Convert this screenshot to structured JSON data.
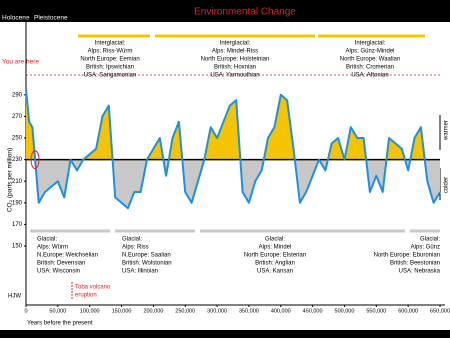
{
  "chart_data": {
    "type": "line",
    "title": "Environmental Change",
    "era_labels": [
      "Holocene",
      "Pleistocene"
    ],
    "you_are_here": "You are here",
    "y_label": "CO₂ (parts per million)",
    "x_label": "Years before the present",
    "warmer": "warmer",
    "colder": "colder",
    "toba": [
      "Toba volcano",
      "eruption"
    ],
    "credit": "HJW",
    "x": [
      0,
      5000,
      10000,
      20000,
      30000,
      40000,
      50000,
      60000,
      70000,
      80000,
      90000,
      100000,
      110000,
      120000,
      130000,
      140000,
      150000,
      160000,
      170000,
      180000,
      190000,
      200000,
      210000,
      220000,
      230000,
      240000,
      250000,
      260000,
      270000,
      280000,
      290000,
      300000,
      310000,
      320000,
      330000,
      340000,
      350000,
      360000,
      370000,
      380000,
      390000,
      400000,
      410000,
      420000,
      430000,
      440000,
      450000,
      460000,
      470000,
      480000,
      490000,
      500000,
      510000,
      520000,
      530000,
      540000,
      550000,
      560000,
      570000,
      580000,
      590000,
      600000,
      610000,
      620000,
      630000,
      640000,
      650000
    ],
    "series": [
      {
        "name": "CO₂",
        "color": "#1e90e0",
        "values": [
          295,
          265,
          260,
          190,
          200,
          205,
          210,
          195,
          230,
          220,
          230,
          235,
          240,
          270,
          280,
          195,
          190,
          185,
          200,
          200,
          230,
          240,
          250,
          215,
          250,
          265,
          200,
          190,
          210,
          230,
          260,
          250,
          265,
          280,
          285,
          200,
          190,
          210,
          220,
          250,
          260,
          290,
          285,
          240,
          190,
          200,
          215,
          230,
          220,
          245,
          250,
          230,
          260,
          250,
          250,
          200,
          215,
          200,
          250,
          245,
          240,
          220,
          250,
          260,
          210,
          190,
          200
        ]
      }
    ],
    "baseline": 230,
    "above_color": "#f5c400",
    "below_color": "#c8c8c8",
    "xlim": [
      0,
      650000
    ],
    "ylim": [
      100,
      350
    ],
    "yticks": [
      150,
      170,
      190,
      210,
      230,
      250,
      270,
      290
    ],
    "xticks": [
      0,
      {
        "value": 50000,
        "label": "50,000"
      },
      {
        "value": 100000,
        "label": "100,000"
      },
      {
        "value": 150000,
        "label": "150,000"
      },
      {
        "value": 200000,
        "label": "200,000"
      },
      {
        "value": 250000,
        "label": "250,000"
      },
      {
        "value": 300000,
        "label": "300,000"
      },
      {
        "value": 350000,
        "label": "350,000"
      },
      {
        "value": 400000,
        "label": "400,000"
      },
      {
        "value": 450000,
        "label": "450,000"
      },
      {
        "value": 500000,
        "label": "500,000"
      },
      {
        "value": 550000,
        "label": "550,000"
      },
      {
        "value": 600000,
        "label": "600,000"
      },
      {
        "value": 650000,
        "label": "650,000"
      }
    ],
    "interglacial_labels": [
      [
        "Interglacial:",
        "Alps: Riss-Würm",
        "North Europe: Eemian",
        "British: Ipswichian",
        "USA: Sangamonian"
      ],
      [
        "Interglacial:",
        "Alps: Mindel-Riss",
        "North Europe: Holsteinian",
        "British: Hoxnian",
        "USA: Yarmouthian"
      ],
      [
        "Interglacial:",
        "Alps: Günz-Mindel",
        "North Europe: Waalian",
        "British: Cromerian",
        "USA: Aftonian"
      ]
    ],
    "glacial_labels": [
      [
        "Glacial:",
        "Alps: Würm",
        "N.Europe: Weichselian",
        "British: Devensian",
        "USA: Wisconsin"
      ],
      [
        "Glacial:",
        "Alps: Riss",
        "N.Europe: Saalian",
        "British: Wolstonian",
        "USA: Illinoian"
      ],
      [
        "Glacial:",
        "Alps: Mindel",
        "North Europe: Elsterian",
        "British: Anglian",
        "USA: Kansan"
      ],
      [
        "Glacial:",
        "Alps: Günz",
        "North Europe: Eburonian",
        "British: Beestonian",
        "USA: Nebraska"
      ]
    ]
  }
}
